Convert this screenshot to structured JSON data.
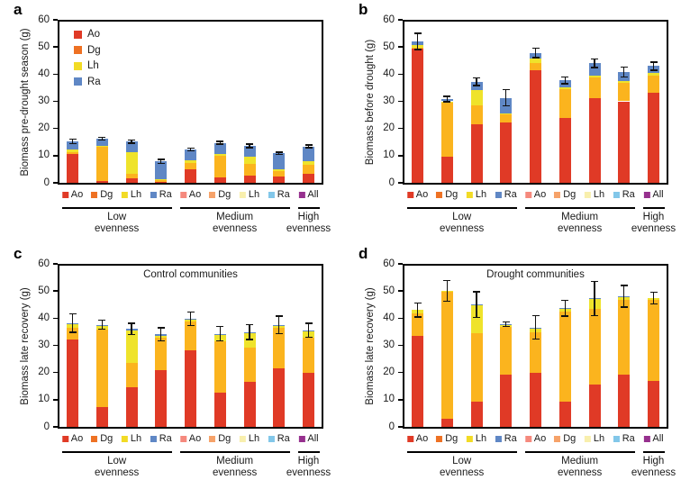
{
  "colors": {
    "bar_segments": {
      "Ao": "#E03A26",
      "Dg": "#FBB41E",
      "Lh": "#EFE32B",
      "Ra": "#5F87C5"
    },
    "legend_swatches": {
      "Ao": "#E03A26",
      "Dg": "#EE7123",
      "Lh": "#F2DB25",
      "Ra": "#5F87C5"
    },
    "tick_swatches": [
      "#E03A26",
      "#EE7123",
      "#F2DB25",
      "#5F87C5",
      "#F5897D",
      "#F6A269",
      "#F8EFAD",
      "#82C7E9",
      "#96308E"
    ],
    "error_bar": "#111111",
    "axis": "#000000"
  },
  "x_axis": {
    "categories": [
      "Ao",
      "Dg",
      "Lh",
      "Ra",
      "Ao",
      "Dg",
      "Lh",
      "Ra",
      "All"
    ],
    "groups": [
      {
        "line1": "Low",
        "line2": "evenness",
        "from": 0,
        "to": 3
      },
      {
        "line1": "Medium",
        "line2": "evenness",
        "from": 4,
        "to": 7
      },
      {
        "line1": "High",
        "line2": "evenness",
        "from": 8,
        "to": 8
      }
    ]
  },
  "chart_data": [
    {
      "type": "bar",
      "subtype": "stacked-with-error-bars",
      "panel": "a",
      "title": "",
      "ylabel": "Biomass pre-drought season (g)",
      "xlabel": "",
      "ylim": [
        0,
        60
      ],
      "yticks": [
        0,
        10,
        20,
        30,
        40,
        50,
        60
      ],
      "grid": false,
      "legend_entries": [
        "Ao",
        "Dg",
        "Lh",
        "Ra"
      ],
      "legend_position": "inside-top-left",
      "categories": [
        "Ao",
        "Dg",
        "Lh",
        "Ra",
        "Ao",
        "Dg",
        "Lh",
        "Ra",
        "All"
      ],
      "series": [
        {
          "name": "Ao",
          "values": [
            10.7,
            0.6,
            1.7,
            0.4,
            4.9,
            1.9,
            2.7,
            2.2,
            3.3
          ]
        },
        {
          "name": "Dg",
          "values": [
            0.5,
            12.5,
            1.6,
            0.8,
            2.5,
            7.9,
            4.4,
            2.0,
            3.2
          ]
        },
        {
          "name": "Lh",
          "values": [
            1.2,
            0.4,
            8.1,
            0.2,
            1.0,
            0.9,
            2.5,
            0.9,
            1.4
          ]
        },
        {
          "name": "Ra",
          "values": [
            2.9,
            2.8,
            3.8,
            6.5,
            3.9,
            4.0,
            4.0,
            5.8,
            5.5
          ]
        }
      ],
      "totals": [
        15.3,
        16.3,
        15.2,
        7.9,
        12.3,
        14.7,
        13.6,
        10.9,
        13.4
      ],
      "errors": [
        0.8,
        0.5,
        0.6,
        0.8,
        0.5,
        0.5,
        0.6,
        0.4,
        0.5
      ]
    },
    {
      "type": "bar",
      "subtype": "stacked-with-error-bars",
      "panel": "b",
      "title": "",
      "ylabel": "Biomass before drought (g)",
      "xlabel": "",
      "ylim": [
        0,
        60
      ],
      "yticks": [
        0,
        10,
        20,
        30,
        40,
        50,
        60
      ],
      "grid": false,
      "legend_entries": [],
      "categories": [
        "Ao",
        "Dg",
        "Lh",
        "Ra",
        "Ao",
        "Dg",
        "Lh",
        "Ra",
        "All"
      ],
      "series": [
        {
          "name": "Ao",
          "values": [
            49.5,
            9.7,
            21.5,
            22.3,
            41.3,
            23.8,
            31.3,
            30.0,
            33.0
          ]
        },
        {
          "name": "Dg",
          "values": [
            0.3,
            19.8,
            7.0,
            2.9,
            2.9,
            10.7,
            7.4,
            6.7,
            6.3
          ]
        },
        {
          "name": "Lh",
          "values": [
            0.9,
            0.5,
            5.5,
            0.3,
            1.7,
            0.6,
            0.6,
            0.6,
            1.2
          ]
        },
        {
          "name": "Ra",
          "values": [
            1.4,
            0.8,
            3.2,
            5.8,
            1.9,
            2.6,
            4.7,
            3.5,
            2.5
          ]
        }
      ],
      "totals": [
        52.1,
        30.8,
        37.2,
        31.3,
        47.8,
        37.7,
        44.0,
        40.8,
        43.0
      ],
      "errors": [
        3.0,
        1.0,
        1.4,
        3.0,
        1.7,
        1.3,
        1.5,
        1.8,
        1.5
      ]
    },
    {
      "type": "bar",
      "subtype": "stacked-with-error-bars",
      "panel": "c",
      "title": "Control communities",
      "ylabel": "Biomass late recovery (g)",
      "xlabel": "",
      "ylim": [
        0,
        60
      ],
      "yticks": [
        0,
        10,
        20,
        30,
        40,
        50,
        60
      ],
      "grid": false,
      "legend_entries": [],
      "categories": [
        "Ao",
        "Dg",
        "Lh",
        "Ra",
        "Ao",
        "Dg",
        "Lh",
        "Ra",
        "All"
      ],
      "series": [
        {
          "name": "Ao",
          "values": [
            32.0,
            7.3,
            14.6,
            21.0,
            28.3,
            12.7,
            16.5,
            21.4,
            20.0
          ]
        },
        {
          "name": "Dg",
          "values": [
            4.3,
            28.4,
            8.8,
            11.7,
            10.5,
            18.9,
            12.6,
            15.0,
            12.7
          ]
        },
        {
          "name": "Lh",
          "values": [
            1.4,
            1.5,
            12.0,
            0.8,
            0.6,
            2.2,
            5.4,
            0.8,
            2.6
          ]
        },
        {
          "name": "Ra",
          "values": [
            0.5,
            0.4,
            0.6,
            0.5,
            0.4,
            0.5,
            0.4,
            0.3,
            0.3
          ]
        }
      ],
      "totals": [
        38.2,
        37.6,
        36.0,
        34.0,
        39.8,
        34.3,
        34.9,
        37.5,
        35.6
      ],
      "errors": [
        3.4,
        1.6,
        2.1,
        2.4,
        2.5,
        2.6,
        2.7,
        3.2,
        2.6
      ]
    },
    {
      "type": "bar",
      "subtype": "stacked-with-error-bars",
      "panel": "d",
      "title": "Drought communities",
      "ylabel": "Biomass late recovery (g)",
      "xlabel": "",
      "ylim": [
        0,
        60
      ],
      "yticks": [
        0,
        10,
        20,
        30,
        40,
        50,
        60
      ],
      "grid": false,
      "legend_entries": [],
      "categories": [
        "Ao",
        "Dg",
        "Lh",
        "Ra",
        "Ao",
        "Dg",
        "Lh",
        "Ra",
        "All"
      ],
      "series": [
        {
          "name": "Ao",
          "values": [
            33.5,
            3.0,
            9.2,
            19.3,
            19.8,
            9.2,
            15.6,
            19.2,
            17.0
          ]
        },
        {
          "name": "Dg",
          "values": [
            8.3,
            46.8,
            25.4,
            17.6,
            15.1,
            33.3,
            27.7,
            27.7,
            29.9
          ]
        },
        {
          "name": "Lh",
          "values": [
            1.2,
            0.2,
            10.3,
            0.6,
            1.5,
            0.8,
            3.8,
            1.0,
            0.5
          ]
        },
        {
          "name": "Ra",
          "values": [
            0.0,
            0.0,
            0.1,
            0.3,
            0.2,
            0.3,
            0.2,
            0.2,
            0.0
          ]
        }
      ],
      "totals": [
        43.0,
        50.0,
        45.0,
        37.8,
        36.6,
        43.6,
        47.3,
        48.1,
        47.4
      ],
      "errors": [
        2.5,
        3.8,
        4.7,
        0.8,
        4.3,
        2.9,
        6.3,
        4.0,
        2.1
      ]
    }
  ]
}
